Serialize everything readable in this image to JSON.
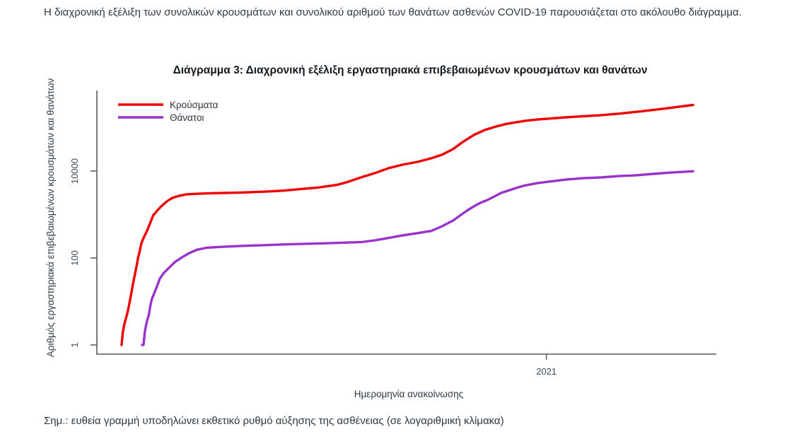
{
  "document": {
    "intro": "Η διαχρονική εξέλιξη των συνολικών κρουσμάτων και συνολικού αριθμού των θανάτων ασθενών COVID-19 παρουσιάζεται στο ακόλουθο διάγραμμα.",
    "note": "Σημ.: ευθεία γραμμή υποδηλώνει εκθετικό ρυθμό αύξησης της ασθένειας (σε λογαριθμική κλίμακα)"
  },
  "chart_data": {
    "type": "line",
    "title": "Διάγραμμα 3: Διαχρονική εξέλιξη εργαστηριακά επιβεβαιωμένων κρουσμάτων και θανάτων",
    "xlabel": "Ημερομηνία ανακοίνωσης",
    "ylabel": "Αριθμός εργαστηριακά επιβεβαιωμένων κρουσμάτων και θανάτων",
    "y_scale": "log",
    "grid": false,
    "ylim": [
      1,
      700000
    ],
    "y_ticks": [
      1,
      100,
      10000
    ],
    "y_tick_labels": [
      "1",
      "100",
      "10000"
    ],
    "x_domain": [
      "2020-02-08",
      "2021-05-05"
    ],
    "x_ticks": [
      {
        "label": "2021",
        "date": "2021-01-01"
      }
    ],
    "legend_position": "top-left",
    "colors": {
      "cases": "#ee0000",
      "deaths": "#9932cc",
      "axis": "#58595b"
    },
    "legend": [
      {
        "label": "Κρούσματα",
        "color": "#ee0000"
      },
      {
        "label": "Θάνατοι",
        "color": "#9932cc"
      }
    ],
    "series": [
      {
        "name": "Κρούσματα",
        "color": "#ee0000",
        "points": [
          [
            "2020-02-26",
            1
          ],
          [
            "2020-02-27",
            2
          ],
          [
            "2020-02-28",
            3
          ],
          [
            "2020-03-01",
            5
          ],
          [
            "2020-03-02",
            7
          ],
          [
            "2020-03-03",
            10
          ],
          [
            "2020-03-04",
            15
          ],
          [
            "2020-03-05",
            22
          ],
          [
            "2020-03-06",
            32
          ],
          [
            "2020-03-07",
            46
          ],
          [
            "2020-03-08",
            66
          ],
          [
            "2020-03-09",
            99
          ],
          [
            "2020-03-10",
            133
          ],
          [
            "2020-03-11",
            190
          ],
          [
            "2020-03-12",
            245
          ],
          [
            "2020-03-14",
            331
          ],
          [
            "2020-03-16",
            450
          ],
          [
            "2020-03-18",
            650
          ],
          [
            "2020-03-20",
            950
          ],
          [
            "2020-03-23",
            1230
          ],
          [
            "2020-03-26",
            1550
          ],
          [
            "2020-03-30",
            2000
          ],
          [
            "2020-04-03",
            2410
          ],
          [
            "2020-04-08",
            2700
          ],
          [
            "2020-04-13",
            2900
          ],
          [
            "2020-04-20",
            3000
          ],
          [
            "2020-05-03",
            3100
          ],
          [
            "2020-05-23",
            3200
          ],
          [
            "2020-06-13",
            3400
          ],
          [
            "2020-06-23",
            3550
          ],
          [
            "2020-07-19",
            4200
          ],
          [
            "2020-08-01",
            4800
          ],
          [
            "2020-08-08",
            5500
          ],
          [
            "2020-08-19",
            7200
          ],
          [
            "2020-08-29",
            9000
          ],
          [
            "2020-09-08",
            11700
          ],
          [
            "2020-09-18",
            14000
          ],
          [
            "2020-09-29",
            16300
          ],
          [
            "2020-10-09",
            19700
          ],
          [
            "2020-10-17",
            23800
          ],
          [
            "2020-10-25",
            32200
          ],
          [
            "2020-11-01",
            46700
          ],
          [
            "2020-11-09",
            67700
          ],
          [
            "2020-11-17",
            88000
          ],
          [
            "2020-11-24",
            103000
          ],
          [
            "2020-12-02",
            120000
          ],
          [
            "2020-12-10",
            133000
          ],
          [
            "2020-12-17",
            144000
          ],
          [
            "2020-12-25",
            153000
          ],
          [
            "2021-01-02",
            160000
          ],
          [
            "2021-01-15",
            172000
          ],
          [
            "2021-01-28",
            183000
          ],
          [
            "2021-02-10",
            193000
          ],
          [
            "2021-02-25",
            212000
          ],
          [
            "2021-03-12",
            238000
          ],
          [
            "2021-03-28",
            273000
          ],
          [
            "2021-04-07",
            300000
          ],
          [
            "2021-04-18",
            333000
          ]
        ]
      },
      {
        "name": "Θάνατοι",
        "color": "#9932cc",
        "points": [
          [
            "2020-03-12",
            1
          ],
          [
            "2020-03-13",
            1
          ],
          [
            "2020-03-14",
            2
          ],
          [
            "2020-03-15",
            3
          ],
          [
            "2020-03-16",
            4
          ],
          [
            "2020-03-17",
            5
          ],
          [
            "2020-03-18",
            8
          ],
          [
            "2020-03-19",
            11
          ],
          [
            "2020-03-21",
            16
          ],
          [
            "2020-03-23",
            23
          ],
          [
            "2020-03-25",
            34
          ],
          [
            "2020-03-28",
            46
          ],
          [
            "2020-04-01",
            61
          ],
          [
            "2020-04-05",
            81
          ],
          [
            "2020-04-10",
            103
          ],
          [
            "2020-04-15",
            128
          ],
          [
            "2020-04-21",
            155
          ],
          [
            "2020-04-28",
            172
          ],
          [
            "2020-05-08",
            180
          ],
          [
            "2020-05-18",
            186
          ],
          [
            "2020-05-28",
            192
          ],
          [
            "2020-06-10",
            198
          ],
          [
            "2020-06-23",
            205
          ],
          [
            "2020-07-09",
            212
          ],
          [
            "2020-07-24",
            218
          ],
          [
            "2020-08-08",
            226
          ],
          [
            "2020-08-19",
            232
          ],
          [
            "2020-08-29",
            255
          ],
          [
            "2020-09-08",
            290
          ],
          [
            "2020-09-18",
            330
          ],
          [
            "2020-09-29",
            373
          ],
          [
            "2020-10-09",
            420
          ],
          [
            "2020-10-17",
            540
          ],
          [
            "2020-10-25",
            730
          ],
          [
            "2020-10-30",
            950
          ],
          [
            "2020-11-04",
            1230
          ],
          [
            "2020-11-09",
            1540
          ],
          [
            "2020-11-14",
            1870
          ],
          [
            "2020-11-19",
            2160
          ],
          [
            "2020-11-24",
            2600
          ],
          [
            "2020-11-29",
            3140
          ],
          [
            "2020-12-05",
            3630
          ],
          [
            "2020-12-10",
            4080
          ],
          [
            "2020-12-15",
            4550
          ],
          [
            "2020-12-20",
            4900
          ],
          [
            "2020-12-25",
            5250
          ],
          [
            "2021-01-02",
            5660
          ],
          [
            "2021-01-15",
            6350
          ],
          [
            "2021-01-28",
            6860
          ],
          [
            "2021-02-10",
            7130
          ],
          [
            "2021-02-23",
            7680
          ],
          [
            "2021-03-07",
            7970
          ],
          [
            "2021-03-20",
            8600
          ],
          [
            "2021-04-02",
            9250
          ],
          [
            "2021-04-18",
            9900
          ]
        ]
      }
    ]
  }
}
